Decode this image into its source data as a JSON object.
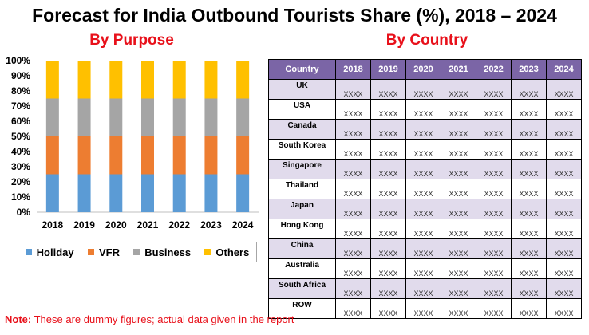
{
  "title": "Forecast for India Outbound Tourists Share (%), 2018 – 2024",
  "left_subtitle": "By Purpose",
  "right_subtitle": "By Country",
  "chart_data": {
    "type": "bar",
    "stacked": true,
    "categories": [
      "2018",
      "2019",
      "2020",
      "2021",
      "2022",
      "2023",
      "2024"
    ],
    "series": [
      {
        "name": "Holiday",
        "color": "#5b9bd5",
        "values": [
          25,
          25,
          25,
          25,
          25,
          25,
          25
        ]
      },
      {
        "name": "VFR",
        "color": "#ed7d31",
        "values": [
          25,
          25,
          25,
          25,
          25,
          25,
          25
        ]
      },
      {
        "name": "Business",
        "color": "#a5a5a5",
        "values": [
          25,
          25,
          25,
          25,
          25,
          25,
          25
        ]
      },
      {
        "name": "Others",
        "color": "#ffc000",
        "values": [
          25,
          25,
          25,
          25,
          25,
          25,
          25
        ]
      }
    ],
    "ylim": [
      0,
      100
    ],
    "yticks": [
      "0%",
      "10%",
      "20%",
      "30%",
      "40%",
      "50%",
      "60%",
      "70%",
      "80%",
      "90%",
      "100%"
    ],
    "legend_position": "bottom"
  },
  "table": {
    "header": [
      "Country",
      "2018",
      "2019",
      "2020",
      "2021",
      "2022",
      "2023",
      "2024"
    ],
    "rows": [
      {
        "country": "UK",
        "values": [
          "XXXX",
          "XXXX",
          "XXXX",
          "XXXX",
          "XXXX",
          "XXXX",
          "XXXX"
        ]
      },
      {
        "country": "USA",
        "values": [
          "XXXX",
          "XXXX",
          "XXXX",
          "XXXX",
          "XXXX",
          "XXXX",
          "XXXX"
        ]
      },
      {
        "country": "Canada",
        "values": [
          "XXXX",
          "XXXX",
          "XXXX",
          "XXXX",
          "XXXX",
          "XXXX",
          "XXXX"
        ]
      },
      {
        "country": "South Korea",
        "values": [
          "XXXX",
          "XXXX",
          "XXXX",
          "XXXX",
          "XXXX",
          "XXXX",
          "XXXX"
        ]
      },
      {
        "country": "Singapore",
        "values": [
          "XXXX",
          "XXXX",
          "XXXX",
          "XXXX",
          "XXXX",
          "XXXX",
          "XXXX"
        ]
      },
      {
        "country": "Thailand",
        "values": [
          "XXXX",
          "XXXX",
          "XXXX",
          "XXXX",
          "XXXX",
          "XXXX",
          "XXXX"
        ]
      },
      {
        "country": "Japan",
        "values": [
          "XXXX",
          "XXXX",
          "XXXX",
          "XXXX",
          "XXXX",
          "XXXX",
          "XXXX"
        ]
      },
      {
        "country": "Hong Kong",
        "values": [
          "XXXX",
          "XXXX",
          "XXXX",
          "XXXX",
          "XXXX",
          "XXXX",
          "XXXX"
        ]
      },
      {
        "country": "China",
        "values": [
          "XXXX",
          "XXXX",
          "XXXX",
          "XXXX",
          "XXXX",
          "XXXX",
          "XXXX"
        ]
      },
      {
        "country": "Australia",
        "values": [
          "XXXX",
          "XXXX",
          "XXXX",
          "XXXX",
          "XXXX",
          "XXXX",
          "XXXX"
        ]
      },
      {
        "country": "South Africa",
        "values": [
          "XXXX",
          "XXXX",
          "XXXX",
          "XXXX",
          "XXXX",
          "XXXX",
          "XXXX"
        ]
      },
      {
        "country": "ROW",
        "values": [
          "XXXX",
          "XXXX",
          "XXXX",
          "XXXX",
          "XXXX",
          "XXXX",
          "XXXX"
        ]
      }
    ]
  },
  "note": {
    "label": "Note:",
    "text": " These are dummy figures; actual data given in the report"
  }
}
